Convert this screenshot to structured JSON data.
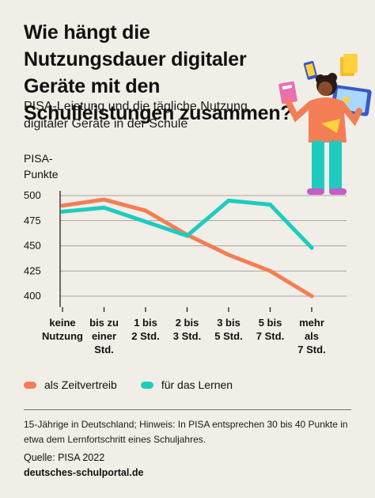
{
  "header": {
    "title": "Wie hängt die Nutzungsdauer digitaler Geräte mit den Schulleistungen zusammen?",
    "subtitle": "PISA-Leistung und die tägliche Nutzung digitaler Geräte in der Schule"
  },
  "chart_data": {
    "type": "line",
    "ylabel": "PISA-Punkte",
    "ylim": [
      400,
      500
    ],
    "yticks": [
      400,
      425,
      450,
      475,
      500
    ],
    "categories": [
      [
        "keine",
        "Nutzung"
      ],
      [
        "bis zu",
        "einer",
        "Std."
      ],
      [
        "1 bis",
        "2 Std."
      ],
      [
        "2 bis",
        "3 Std."
      ],
      [
        "3 bis",
        "5 Std."
      ],
      [
        "5 bis",
        "7 Std."
      ],
      [
        "mehr",
        "als",
        "7 Std."
      ]
    ],
    "grid": true,
    "legend_position": "bottom",
    "series": [
      {
        "name": "als Zeitvertreib",
        "color": "#f37e55",
        "values": [
          490,
          496,
          485,
          461,
          441,
          425,
          400
        ]
      },
      {
        "name": "für das Lernen",
        "color": "#1ecbc0",
        "values": [
          484,
          488,
          474,
          460,
          495,
          491,
          448
        ]
      }
    ]
  },
  "footer": {
    "note": "15-Jährige in Deutschland; Hinweis: In PISA entsprechen 30 bis 40 Punkte in etwa dem Lernfortschritt eines Schuljahres.",
    "source": "Quelle: PISA 2022",
    "site": "deutsches-schulportal.de"
  }
}
